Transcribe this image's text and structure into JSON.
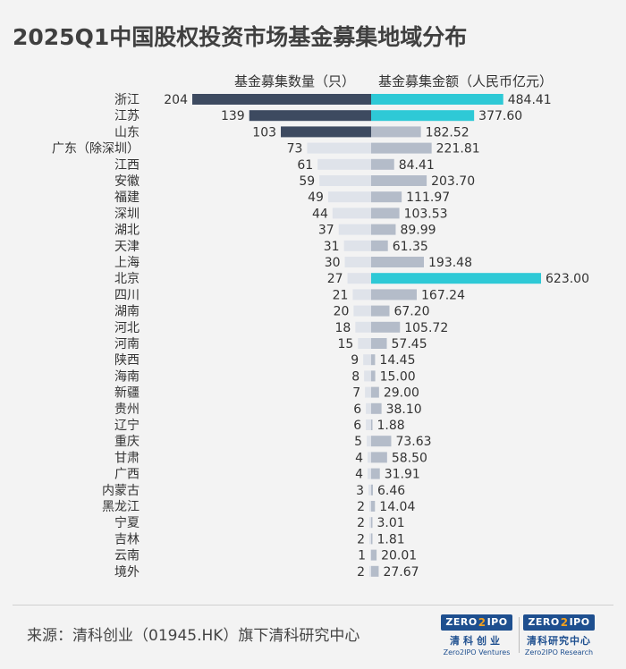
{
  "title": "2025Q1中国股权投资市场基金募集地域分布",
  "headers": {
    "left": "基金募集数量（只）",
    "right": "基金募集金额（人民币亿元）"
  },
  "colors": {
    "count_highlight": "#3d4a60",
    "count_default": "#dfe3ea",
    "amount_highlight": "#2ec9d6",
    "amount_default": "#b4bcc9"
  },
  "chart_data": {
    "type": "bar",
    "orientation": "horizontal-diverging",
    "categories": [
      "浙江",
      "江苏",
      "山东",
      "广东（除深圳）",
      "江西",
      "安徽",
      "福建",
      "深圳",
      "湖北",
      "天津",
      "上海",
      "北京",
      "四川",
      "湖南",
      "河北",
      "河南",
      "陕西",
      "海南",
      "新疆",
      "贵州",
      "辽宁",
      "重庆",
      "甘肃",
      "广西",
      "内蒙古",
      "黑龙江",
      "宁夏",
      "吉林",
      "云南",
      "境外"
    ],
    "series": [
      {
        "name": "基金募集数量（只）",
        "values": [
          204,
          139,
          103,
          73,
          61,
          59,
          49,
          44,
          37,
          31,
          30,
          27,
          21,
          20,
          18,
          15,
          9,
          8,
          7,
          6,
          6,
          5,
          4,
          4,
          3,
          2,
          2,
          2,
          1,
          2
        ],
        "labels": [
          "204",
          "139",
          "103",
          "73",
          "61",
          "59",
          "49",
          "44",
          "37",
          "31",
          "30",
          "27",
          "21",
          "20",
          "18",
          "15",
          "9",
          "8",
          "7",
          "6",
          "6",
          "5",
          "4",
          "4",
          "3",
          "2",
          "2",
          "2",
          "1",
          "2"
        ],
        "highlight": [
          0,
          1,
          2
        ]
      },
      {
        "name": "基金募集金额（人民币亿元）",
        "values": [
          484.41,
          377.6,
          182.52,
          221.81,
          84.41,
          203.7,
          111.97,
          103.53,
          89.99,
          61.35,
          193.48,
          623.0,
          167.24,
          67.2,
          105.72,
          57.45,
          14.45,
          15.0,
          29.0,
          38.1,
          1.88,
          73.63,
          58.5,
          31.91,
          6.46,
          14.04,
          3.01,
          1.81,
          20.01,
          27.67
        ],
        "labels": [
          "484.41",
          "377.60",
          "182.52",
          "221.81",
          "84.41",
          "203.70",
          "111.97",
          "103.53",
          "89.99",
          "61.35",
          "193.48",
          "623.00",
          "167.24",
          "67.20",
          "105.72",
          "57.45",
          "14.45",
          "15.00",
          "29.00",
          "38.10",
          "1.88",
          "73.63",
          "58.50",
          "31.91",
          "6.46",
          "14.04",
          "3.01",
          "1.81",
          "20.01",
          "27.67"
        ],
        "highlight": [
          0,
          1,
          11
        ]
      }
    ]
  },
  "footer": {
    "source": "来源：清科创业（01945.HK）旗下清科研究中心",
    "logo1": {
      "word_a": "ZERO",
      "word_b": "2",
      "word_c": "IPO",
      "cn": "清科创业",
      "en": "Zero2IPO Ventures"
    },
    "logo2": {
      "word_a": "ZERO",
      "word_b": "2",
      "word_c": "IPO",
      "cn": "清科研究中心",
      "en": "Zero2IPO Research"
    }
  }
}
